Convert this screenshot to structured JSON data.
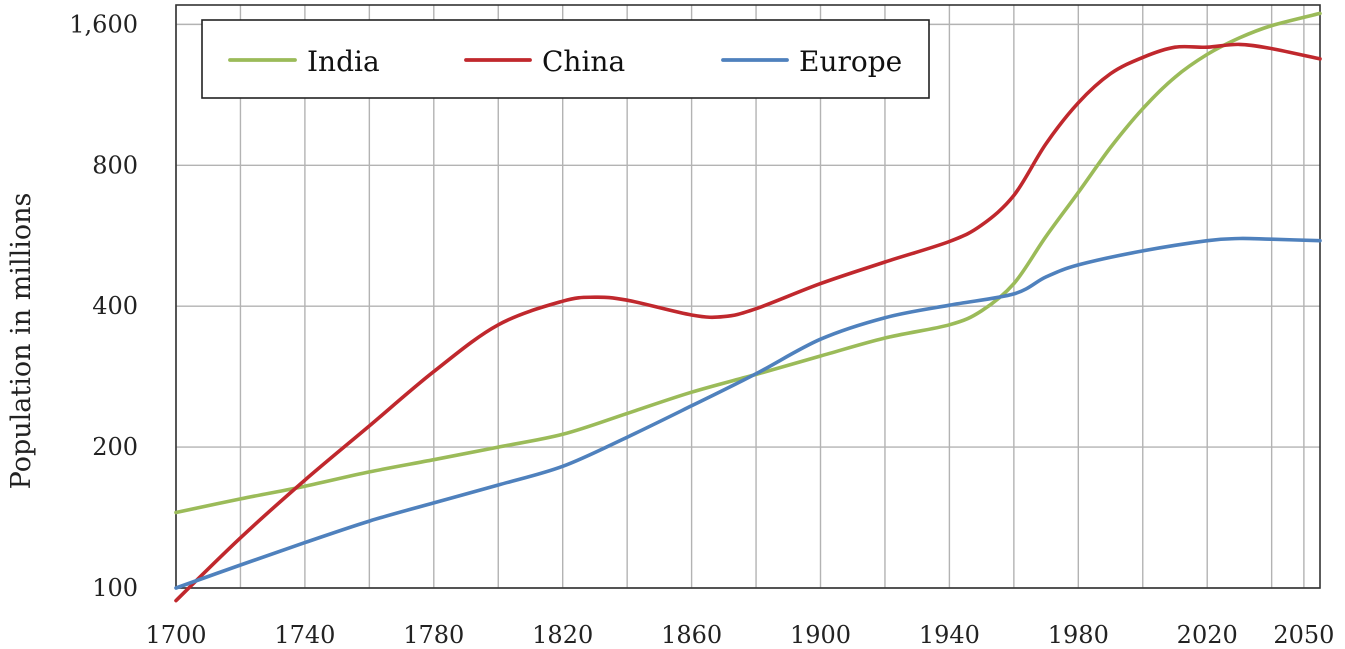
{
  "chart_data": {
    "type": "line",
    "ylabel": "Population in millions",
    "y_scale": "log2",
    "xlim": [
      1700,
      2055
    ],
    "ylim": [
      100,
      1760
    ],
    "x_ticks": [
      1700,
      1740,
      1780,
      1820,
      1860,
      1900,
      1940,
      1980,
      2020,
      2050
    ],
    "x_tick_labels": [
      "1700",
      "1740",
      "1780",
      "1820",
      "1860",
      "1900",
      "1940",
      "1980",
      "2020",
      "2050"
    ],
    "x_grid": [
      1700,
      1720,
      1740,
      1760,
      1780,
      1800,
      1820,
      1840,
      1860,
      1880,
      1900,
      1920,
      1940,
      1960,
      1980,
      2000,
      2020,
      2040,
      2050
    ],
    "y_ticks": [
      100,
      200,
      400,
      800,
      1600
    ],
    "y_tick_labels": [
      "100",
      "200",
      "400",
      "800",
      "1,600"
    ],
    "y_grid": [
      100,
      200,
      400,
      800,
      1600
    ],
    "grid": true,
    "legend_position": "top-left",
    "series": [
      {
        "name": "India",
        "color": "#9bbb59",
        "x": [
          1700,
          1720,
          1740,
          1760,
          1780,
          1800,
          1820,
          1840,
          1860,
          1880,
          1900,
          1920,
          1940,
          1950,
          1960,
          1970,
          1980,
          1990,
          2000,
          2010,
          2020,
          2030,
          2040,
          2055
        ],
        "y": [
          145,
          155,
          165,
          177,
          188,
          200,
          213,
          236,
          262,
          286,
          313,
          342,
          365,
          391,
          447,
          564,
          700,
          873,
          1057,
          1234,
          1380,
          1497,
          1590,
          1689
        ]
      },
      {
        "name": "China",
        "color": "#c0282d",
        "x": [
          1700,
          1720,
          1740,
          1760,
          1780,
          1800,
          1820,
          1830,
          1840,
          1860,
          1870,
          1880,
          1900,
          1920,
          1940,
          1950,
          1960,
          1970,
          1980,
          1990,
          2000,
          2010,
          2020,
          2030,
          2040,
          2055
        ],
        "y": [
          94,
          128,
          170,
          222,
          290,
          365,
          410,
          418,
          412,
          383,
          380,
          395,
          447,
          497,
          550,
          596,
          690,
          890,
          1088,
          1255,
          1360,
          1430,
          1430,
          1450,
          1420,
          1350
        ]
      },
      {
        "name": "Europe",
        "color": "#4f81bd",
        "x": [
          1700,
          1720,
          1740,
          1760,
          1780,
          1800,
          1820,
          1840,
          1860,
          1880,
          1900,
          1920,
          1940,
          1960,
          1970,
          1980,
          2000,
          2020,
          2030,
          2040,
          2055
        ],
        "y": [
          100,
          112,
          125,
          139,
          152,
          166,
          182,
          210,
          245,
          287,
          340,
          378,
          402,
          425,
          462,
          490,
          525,
          552,
          558,
          556,
          552
        ]
      }
    ]
  }
}
